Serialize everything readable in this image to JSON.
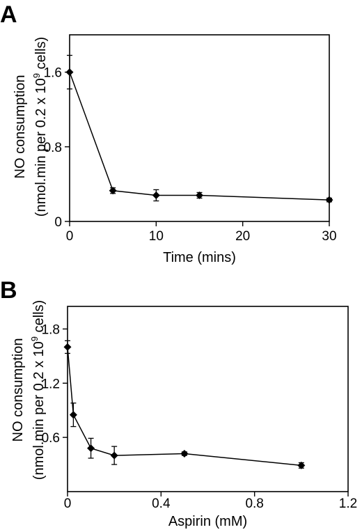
{
  "chart_data": [
    {
      "type": "line",
      "panel_label": "A",
      "xlabel": "Time (mins)",
      "ylabel_line1": "NO consumption",
      "ylabel_line2_main": "(nmol.min per 0.2 x 10",
      "ylabel_line2_sup": "9",
      "ylabel_line2_end": " cells)",
      "xlim": [
        0,
        30
      ],
      "ylim": [
        0,
        2.0
      ],
      "xticks": [
        0,
        10,
        20,
        30
      ],
      "xtick_labels": [
        "0",
        "10",
        "20",
        "30"
      ],
      "yticks": [
        0,
        0.8,
        1.6
      ],
      "ytick_labels": [
        "0",
        "0.8",
        "1.6"
      ],
      "grid": false,
      "series": [
        {
          "x": [
            0,
            5,
            10,
            15,
            30
          ],
          "y": [
            1.6,
            0.33,
            0.28,
            0.28,
            0.23
          ],
          "err": [
            0.18,
            0.03,
            0.06,
            0.03,
            0.02
          ]
        }
      ]
    },
    {
      "type": "line",
      "panel_label": "B",
      "xlabel": "Aspirin (mM)",
      "ylabel_line1": "NO consumption",
      "ylabel_line2_main": "(nmol.min per 0.2 x 10",
      "ylabel_line2_sup": "9",
      "ylabel_line2_end": " cells)",
      "xlim": [
        0,
        1.2
      ],
      "ylim": [
        0,
        2.05
      ],
      "xticks": [
        0,
        0.4,
        0.8,
        1.2
      ],
      "xtick_labels": [
        "0",
        "0.4",
        "0.8",
        "1.2"
      ],
      "yticks": [
        0.6,
        1.2,
        1.8
      ],
      "ytick_labels": [
        "0.6",
        "1.2",
        "1.8"
      ],
      "grid": false,
      "series": [
        {
          "x": [
            0,
            0.025,
            0.1,
            0.2,
            0.5,
            1.0
          ],
          "y": [
            1.6,
            0.85,
            0.48,
            0.4,
            0.42,
            0.29
          ],
          "err": [
            0.07,
            0.13,
            0.11,
            0.1,
            0.02,
            0.03
          ]
        }
      ]
    }
  ]
}
